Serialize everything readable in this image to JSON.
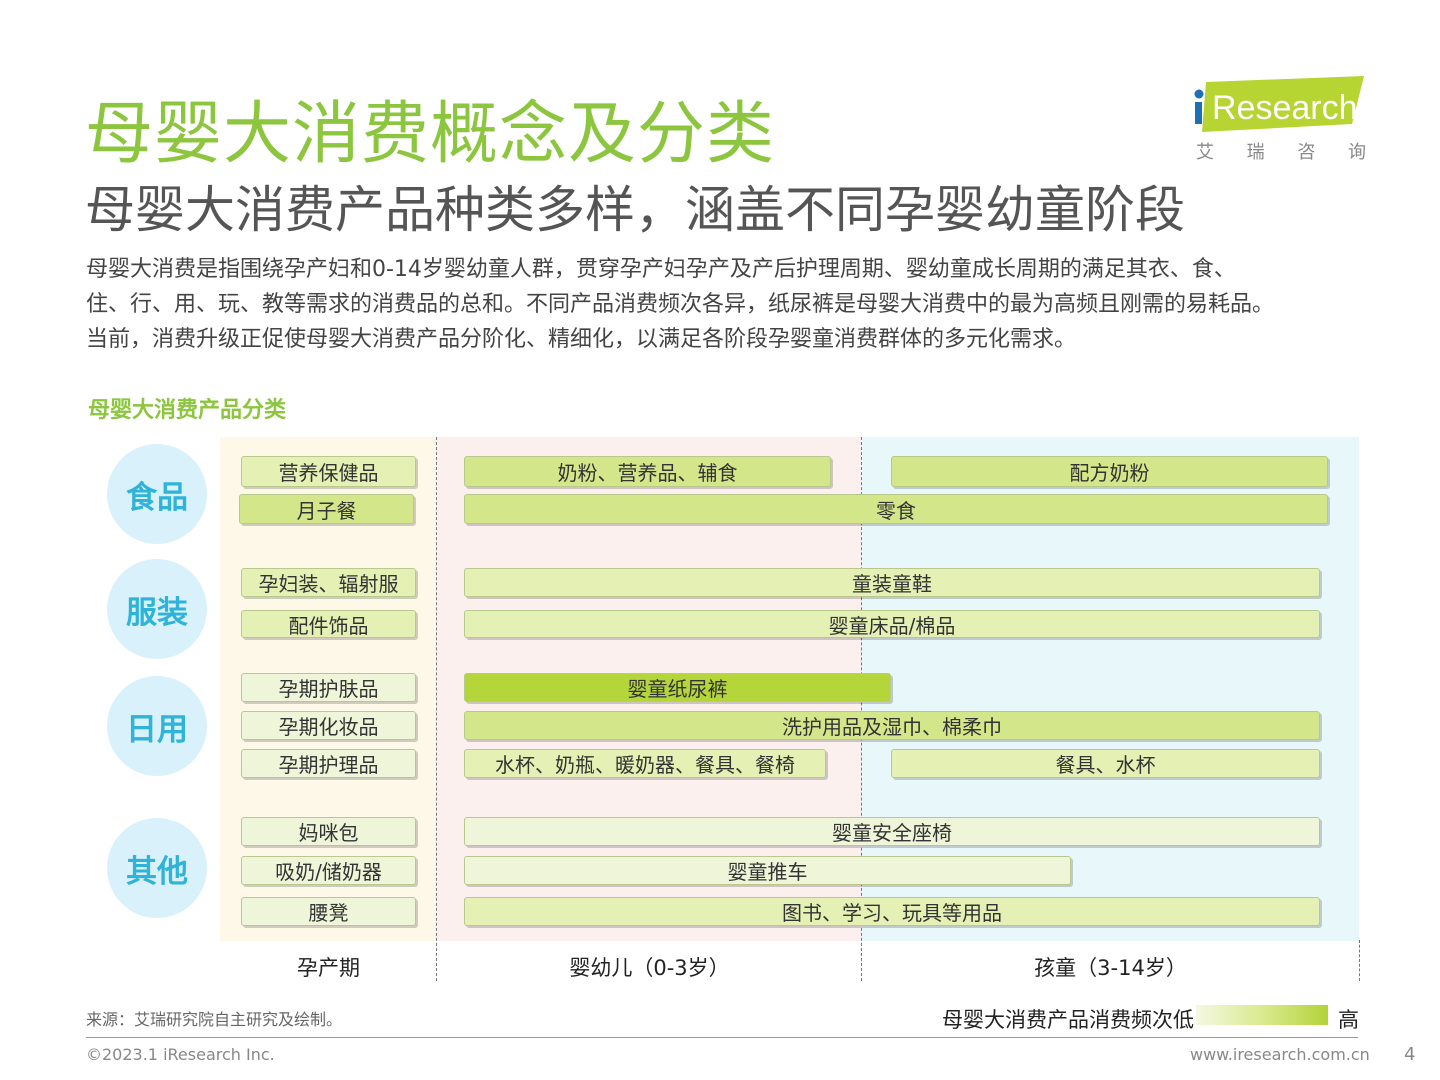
{
  "header": {
    "title": "母婴大消费概念及分类",
    "subtitle": "母婴大消费产品种类多样，涵盖不同孕婴幼童阶段",
    "intro_lines": [
      "母婴大消费是指围绕孕产妇和0-14岁婴幼童人群，贯穿孕产妇孕产及产后护理周期、婴幼童成长周期的满足其衣、食、",
      "住、行、用、玩、教等需求的消费品的总和。不同产品消费频次各异，纸尿裤是母婴大消费中的最为高频且刚需的易耗品。",
      "当前，消费升级正促使母婴大消费产品分阶化、精细化，以满足各阶段孕婴童消费群体的多元化需求。"
    ]
  },
  "logo": {
    "brand": "Research",
    "i_letter": "i",
    "chinese_chars": [
      "艾",
      "瑞",
      "咨",
      "询"
    ],
    "accent_color": "#b6d432",
    "dot_color": "#1f6fb5"
  },
  "diagram": {
    "section_title": "母婴大消费产品分类",
    "categories": [
      "食品",
      "服装",
      "日用",
      "其他"
    ],
    "stages": [
      "孕产期",
      "婴幼儿（0-3岁）",
      "孩童（3-14岁）"
    ],
    "items": {
      "food_pregnancy_1": "营养保健品",
      "food_pregnancy_2": "月子餐",
      "food_infant": "奶粉、营养品、辅食",
      "food_child": "配方奶粉",
      "food_snack": "零食",
      "clothing_pregnancy_1": "孕妇装、辐射服",
      "clothing_pregnancy_2": "配件饰品",
      "clothing_kids": "童装童鞋",
      "clothing_bedding": "婴童床品/棉品",
      "daily_pregnancy_1": "孕期护肤品",
      "daily_pregnancy_2": "孕期化妆品",
      "daily_pregnancy_3": "孕期护理品",
      "daily_diaper": "婴童纸尿裤",
      "daily_wash": "洗护用品及湿巾、棉柔巾",
      "daily_infant_feed": "水杯、奶瓶、暖奶器、餐具、餐椅",
      "daily_child_feed": "餐具、水杯",
      "other_pregnancy_1": "妈咪包",
      "other_pregnancy_2": "吸奶/储奶器",
      "other_pregnancy_3": "腰凳",
      "other_car_seat": "婴童安全座椅",
      "other_stroller": "婴童推车",
      "other_books": "图书、学习、玩具等用品"
    },
    "legend": {
      "label": "母婴大消费产品消费频次低",
      "high": "高"
    },
    "zone_colors": {
      "pregnancy": "#fdf8e8",
      "infant": "#fcf0ee",
      "child": "#e8f7f9"
    }
  },
  "footer": {
    "source": "来源：艾瑞研究院自主研究及绘制。",
    "copyright": "©2023.1 iResearch Inc.",
    "website": "www.iresearch.com.cn",
    "page": "4"
  }
}
